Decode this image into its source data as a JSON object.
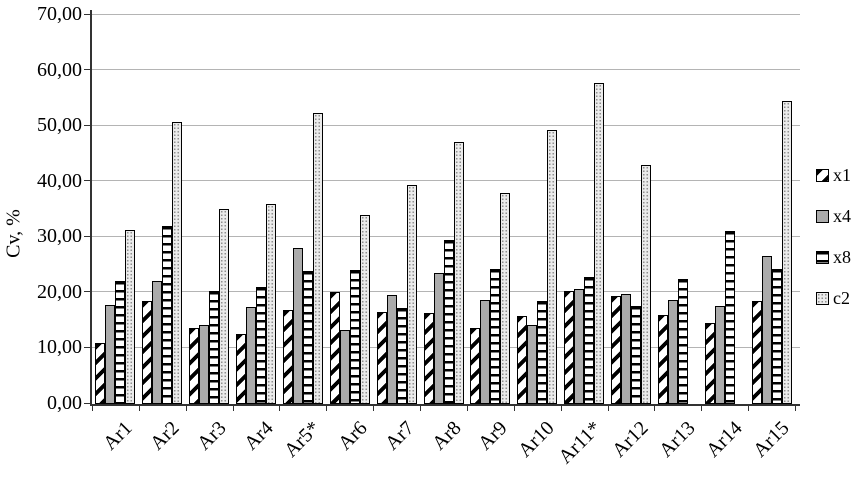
{
  "chart_data": {
    "type": "bar",
    "title": "",
    "xlabel": "",
    "ylabel": "Cv, %",
    "ylim": [
      0,
      70
    ],
    "ytick_step": 10,
    "ytick_labels": [
      "0,00",
      "10,00",
      "20,00",
      "30,00",
      "40,00",
      "50,00",
      "60,00",
      "70,00"
    ],
    "grid": true,
    "legend_position": "right",
    "categories": [
      "Ar1",
      "Ar2",
      "Ar3",
      "Ar4",
      "Ar5*",
      "Ar6",
      "Ar7",
      "Ar8",
      "Ar9",
      "Ar10",
      "Ar11*",
      "Ar12",
      "Ar13",
      "Ar14",
      "Ar15"
    ],
    "series": [
      {
        "name": "x1",
        "pattern": "diagonal-stripes",
        "values": [
          10.8,
          18.4,
          13.5,
          12.4,
          16.8,
          20.0,
          16.3,
          16.2,
          13.5,
          15.7,
          20.2,
          19.3,
          15.8,
          14.4,
          18.4
        ]
      },
      {
        "name": "x4",
        "pattern": "solid-gray",
        "values": [
          17.7,
          22.0,
          14.1,
          17.2,
          27.9,
          13.1,
          19.4,
          23.4,
          18.5,
          14.1,
          20.5,
          19.7,
          18.6,
          17.5,
          26.4
        ]
      },
      {
        "name": "x8",
        "pattern": "horizontal-stripes",
        "values": [
          21.9,
          31.8,
          20.2,
          20.8,
          23.8,
          24.0,
          17.1,
          29.4,
          24.2,
          18.3,
          22.6,
          17.5,
          22.4,
          30.9,
          24.2
        ]
      },
      {
        "name": "c2",
        "pattern": "stipple-dots",
        "values": [
          31.2,
          50.6,
          34.9,
          35.8,
          52.2,
          33.8,
          39.2,
          47.0,
          37.7,
          49.2,
          57.5,
          42.8,
          null,
          null,
          54.3
        ]
      }
    ]
  },
  "colors": {
    "background": "#ffffff",
    "gridline": "#b4b4b4",
    "axis": "#333333",
    "bar_border": "#000000",
    "solid_gray_fill": "#ababab",
    "stipple_fill": "#ebebeb"
  }
}
